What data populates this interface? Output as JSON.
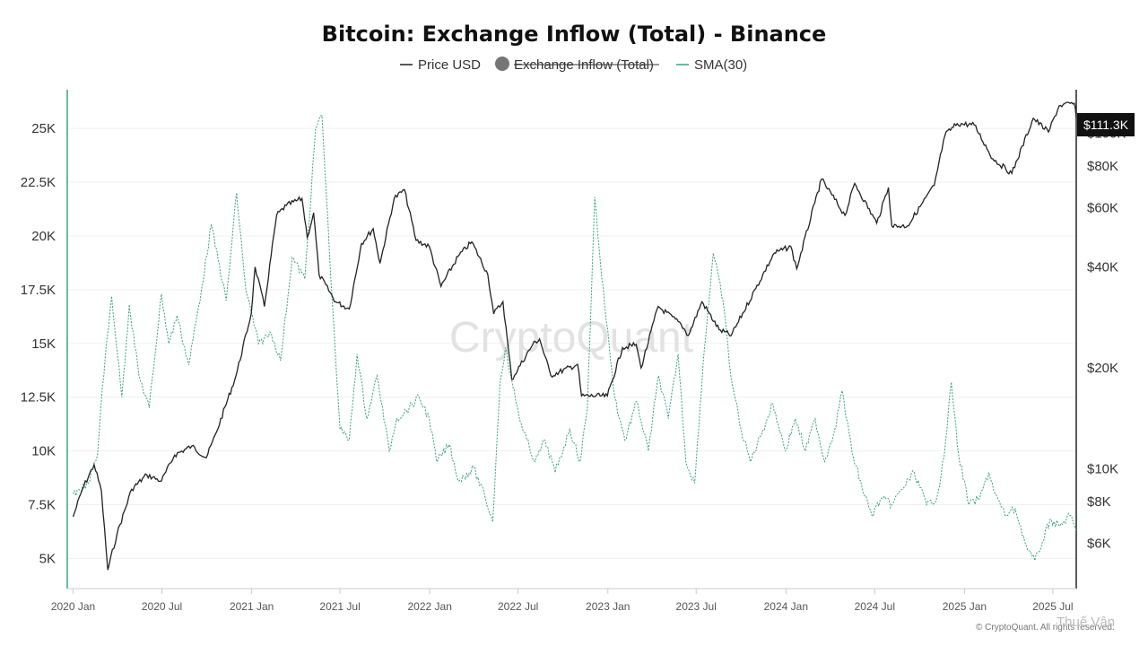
{
  "chart_data": {
    "type": "line",
    "title": "Bitcoin: Exchange Inflow (Total) - Binance",
    "legend": [
      {
        "name": "Price USD",
        "color": "#222222",
        "marker": "line",
        "disabled": false
      },
      {
        "name": "Exchange Inflow (Total)",
        "color": "#757575",
        "marker": "dot",
        "disabled": true
      },
      {
        "name": "SMA(30)",
        "color": "#3aa37a",
        "marker": "line",
        "disabled": false
      }
    ],
    "legend_position": "top-center",
    "grid": true,
    "x_axis": {
      "type": "date",
      "range": [
        "2019-12-20",
        "2025-08-18"
      ],
      "tick_labels": [
        "2020 Jan",
        "2020 Jul",
        "2021 Jan",
        "2021 Jul",
        "2022 Jan",
        "2022 Jul",
        "2023 Jan",
        "2023 Jul",
        "2024 Jan",
        "2024 Jul",
        "2025 Jan",
        "2025 Jul"
      ],
      "tick_dates": [
        "2020-01-01",
        "2020-07-01",
        "2021-01-01",
        "2021-07-01",
        "2022-01-01",
        "2022-07-01",
        "2023-01-01",
        "2023-07-01",
        "2024-01-01",
        "2024-07-01",
        "2025-01-01",
        "2025-07-01"
      ]
    },
    "y_left": {
      "series": "SMA(30)",
      "scale": "linear",
      "range": [
        3600,
        26800
      ],
      "ticks": [
        5000,
        7500,
        10000,
        12500,
        15000,
        17500,
        20000,
        22500,
        25000
      ],
      "tick_labels": [
        "5K",
        "7.5K",
        "10K",
        "12.5K",
        "15K",
        "17.5K",
        "20K",
        "22.5K",
        "25K"
      ]
    },
    "y_right": {
      "series": "Price USD",
      "scale": "log",
      "range": [
        4400,
        135000
      ],
      "ticks": [
        6000,
        8000,
        10000,
        20000,
        40000,
        60000,
        80000,
        100000
      ],
      "tick_labels": [
        "$6K",
        "$8K",
        "$10K",
        "$20K",
        "$40K",
        "$60K",
        "$80K",
        "$100K"
      ],
      "last_value_label": "$111.3K"
    },
    "series": [
      {
        "name": "Price USD",
        "axis": "right",
        "color": "#222222",
        "points": [
          [
            "2020-01-01",
            7200
          ],
          [
            "2020-01-20",
            8700
          ],
          [
            "2020-02-13",
            10300
          ],
          [
            "2020-02-28",
            8600
          ],
          [
            "2020-03-12",
            5000
          ],
          [
            "2020-03-31",
            6400
          ],
          [
            "2020-04-30",
            8700
          ],
          [
            "2020-05-31",
            9600
          ],
          [
            "2020-06-30",
            9200
          ],
          [
            "2020-07-27",
            11000
          ],
          [
            "2020-08-31",
            11700
          ],
          [
            "2020-09-30",
            10800
          ],
          [
            "2020-10-21",
            12900
          ],
          [
            "2020-11-30",
            19000
          ],
          [
            "2020-12-31",
            29000
          ],
          [
            "2021-01-08",
            40000
          ],
          [
            "2021-01-27",
            30500
          ],
          [
            "2021-02-21",
            57000
          ],
          [
            "2021-03-13",
            61000
          ],
          [
            "2021-04-14",
            64000
          ],
          [
            "2021-04-25",
            49000
          ],
          [
            "2021-05-08",
            58000
          ],
          [
            "2021-05-19",
            38000
          ],
          [
            "2021-06-22",
            31500
          ],
          [
            "2021-07-20",
            30000
          ],
          [
            "2021-08-14",
            47000
          ],
          [
            "2021-09-07",
            52000
          ],
          [
            "2021-09-21",
            41000
          ],
          [
            "2021-10-20",
            64000
          ],
          [
            "2021-11-10",
            68000
          ],
          [
            "2021-12-04",
            48000
          ],
          [
            "2021-12-31",
            46000
          ],
          [
            "2022-01-24",
            35000
          ],
          [
            "2022-02-28",
            43000
          ],
          [
            "2022-03-28",
            47500
          ],
          [
            "2022-04-30",
            38000
          ],
          [
            "2022-05-12",
            29000
          ],
          [
            "2022-05-31",
            31500
          ],
          [
            "2022-06-18",
            18500
          ],
          [
            "2022-07-31",
            23500
          ],
          [
            "2022-08-14",
            24400
          ],
          [
            "2022-09-06",
            19000
          ],
          [
            "2022-10-31",
            20500
          ],
          [
            "2022-11-08",
            16500
          ],
          [
            "2022-12-31",
            16500
          ],
          [
            "2023-01-31",
            23000
          ],
          [
            "2023-02-28",
            23500
          ],
          [
            "2023-03-10",
            20000
          ],
          [
            "2023-04-14",
            30500
          ],
          [
            "2023-05-31",
            27000
          ],
          [
            "2023-06-15",
            25000
          ],
          [
            "2023-07-13",
            31500
          ],
          [
            "2023-08-17",
            26000
          ],
          [
            "2023-09-11",
            25000
          ],
          [
            "2023-10-31",
            34500
          ],
          [
            "2023-12-08",
            44000
          ],
          [
            "2024-01-11",
            46000
          ],
          [
            "2024-01-23",
            39500
          ],
          [
            "2024-02-29",
            62000
          ],
          [
            "2024-03-14",
            73000
          ],
          [
            "2024-05-01",
            57000
          ],
          [
            "2024-05-21",
            71000
          ],
          [
            "2024-07-05",
            54000
          ],
          [
            "2024-07-29",
            69000
          ],
          [
            "2024-08-05",
            53000
          ],
          [
            "2024-09-06",
            53000
          ],
          [
            "2024-10-31",
            70000
          ],
          [
            "2024-11-22",
            99000
          ],
          [
            "2024-12-17",
            107000
          ],
          [
            "2025-01-21",
            106000
          ],
          [
            "2025-02-28",
            84000
          ],
          [
            "2025-04-08",
            76000
          ],
          [
            "2025-05-22",
            111000
          ],
          [
            "2025-06-22",
            101000
          ],
          [
            "2025-07-14",
            121000
          ],
          [
            "2025-08-14",
            123000
          ],
          [
            "2025-08-18",
            111300
          ]
        ]
      },
      {
        "name": "SMA(30)",
        "axis": "left",
        "color": "#3aa37a",
        "points": [
          [
            "2020-01-01",
            8000
          ],
          [
            "2020-02-01",
            8500
          ],
          [
            "2020-02-20",
            9800
          ],
          [
            "2020-03-01",
            13000
          ],
          [
            "2020-03-20",
            17200
          ],
          [
            "2020-04-10",
            12500
          ],
          [
            "2020-04-25",
            16800
          ],
          [
            "2020-05-15",
            13500
          ],
          [
            "2020-06-05",
            12000
          ],
          [
            "2020-06-30",
            17300
          ],
          [
            "2020-07-15",
            15000
          ],
          [
            "2020-08-01",
            16300
          ],
          [
            "2020-08-25",
            14000
          ],
          [
            "2020-09-20",
            17500
          ],
          [
            "2020-10-10",
            20500
          ],
          [
            "2020-11-10",
            17000
          ],
          [
            "2020-12-01",
            22000
          ],
          [
            "2020-12-20",
            17500
          ],
          [
            "2021-01-15",
            15000
          ],
          [
            "2021-02-10",
            15500
          ],
          [
            "2021-03-01",
            14200
          ],
          [
            "2021-03-25",
            19000
          ],
          [
            "2021-04-20",
            18000
          ],
          [
            "2021-05-12",
            25000
          ],
          [
            "2021-05-25",
            25600
          ],
          [
            "2021-06-15",
            17000
          ],
          [
            "2021-07-01",
            11000
          ],
          [
            "2021-07-20",
            10500
          ],
          [
            "2021-08-05",
            14500
          ],
          [
            "2021-08-25",
            11500
          ],
          [
            "2021-09-15",
            13500
          ],
          [
            "2021-10-10",
            10000
          ],
          [
            "2021-10-25",
            11500
          ],
          [
            "2021-11-20",
            12000
          ],
          [
            "2021-12-10",
            12500
          ],
          [
            "2021-12-31",
            11500
          ],
          [
            "2022-01-15",
            9500
          ],
          [
            "2022-02-10",
            10300
          ],
          [
            "2022-03-01",
            8600
          ],
          [
            "2022-04-01",
            9200
          ],
          [
            "2022-04-25",
            7800
          ],
          [
            "2022-05-10",
            6700
          ],
          [
            "2022-05-25",
            13200
          ],
          [
            "2022-06-05",
            14800
          ],
          [
            "2022-06-20",
            13000
          ],
          [
            "2022-07-10",
            11000
          ],
          [
            "2022-08-05",
            9500
          ],
          [
            "2022-08-25",
            10500
          ],
          [
            "2022-09-15",
            9000
          ],
          [
            "2022-10-15",
            11000
          ],
          [
            "2022-11-05",
            9500
          ],
          [
            "2022-11-20",
            12000
          ],
          [
            "2022-12-05",
            21800
          ],
          [
            "2022-12-20",
            18000
          ],
          [
            "2023-01-15",
            12500
          ],
          [
            "2023-02-05",
            10500
          ],
          [
            "2023-03-01",
            12300
          ],
          [
            "2023-03-25",
            10000
          ],
          [
            "2023-04-15",
            13500
          ],
          [
            "2023-05-05",
            11500
          ],
          [
            "2023-05-25",
            14500
          ],
          [
            "2023-06-10",
            9500
          ],
          [
            "2023-06-28",
            8500
          ],
          [
            "2023-07-15",
            14000
          ],
          [
            "2023-08-05",
            19200
          ],
          [
            "2023-08-25",
            17000
          ],
          [
            "2023-09-10",
            13500
          ],
          [
            "2023-10-01",
            11000
          ],
          [
            "2023-10-20",
            9500
          ],
          [
            "2023-11-15",
            11000
          ],
          [
            "2023-12-05",
            12200
          ],
          [
            "2023-12-31",
            10000
          ],
          [
            "2024-01-20",
            11500
          ],
          [
            "2024-02-10",
            10000
          ],
          [
            "2024-03-01",
            11500
          ],
          [
            "2024-03-20",
            9500
          ],
          [
            "2024-04-10",
            11000
          ],
          [
            "2024-04-25",
            12800
          ],
          [
            "2024-05-15",
            10000
          ],
          [
            "2024-06-05",
            8300
          ],
          [
            "2024-06-25",
            7000
          ],
          [
            "2024-07-15",
            7800
          ],
          [
            "2024-08-05",
            7500
          ],
          [
            "2024-08-25",
            8200
          ],
          [
            "2024-09-20",
            9000
          ],
          [
            "2024-10-15",
            7500
          ],
          [
            "2024-11-05",
            7800
          ],
          [
            "2024-11-20",
            9700
          ],
          [
            "2024-12-05",
            13200
          ],
          [
            "2024-12-20",
            9800
          ],
          [
            "2025-01-10",
            7500
          ],
          [
            "2025-02-01",
            7800
          ],
          [
            "2025-02-20",
            9000
          ],
          [
            "2025-03-05",
            8000
          ],
          [
            "2025-03-25",
            7000
          ],
          [
            "2025-04-15",
            7300
          ],
          [
            "2025-05-10",
            5400
          ],
          [
            "2025-05-25",
            4900
          ],
          [
            "2025-06-10",
            5800
          ],
          [
            "2025-06-25",
            6800
          ],
          [
            "2025-07-15",
            6500
          ],
          [
            "2025-08-05",
            7000
          ],
          [
            "2025-08-18",
            6300
          ]
        ]
      }
    ]
  },
  "watermark": "CryptoQuant",
  "credit": "© CryptoQuant. All rights reserved.",
  "corner_label": "Thuế Vân"
}
